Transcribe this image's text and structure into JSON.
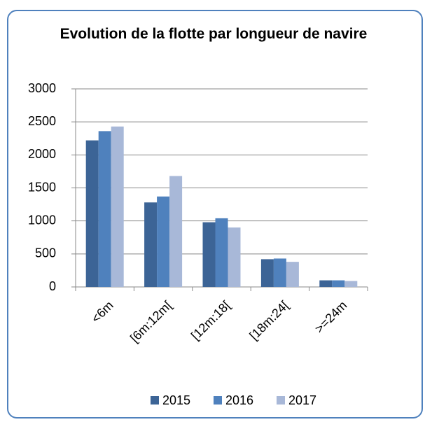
{
  "chart_data": {
    "type": "bar",
    "title": "Evolution de la flotte par longueur de navire",
    "categories": [
      "<6m",
      "[6m:12m[",
      "[12m:18[",
      "[18m:24[",
      ">=24m"
    ],
    "series": [
      {
        "name": "2015",
        "color": "#3c6496",
        "values": [
          2220,
          1280,
          980,
          420,
          100
        ]
      },
      {
        "name": "2016",
        "color": "#4f81bd",
        "values": [
          2360,
          1370,
          1040,
          430,
          100
        ]
      },
      {
        "name": "2017",
        "color": "#a8b8d8",
        "values": [
          2430,
          1680,
          900,
          380,
          90
        ]
      }
    ],
    "ylim": [
      0,
      3000
    ],
    "yticks": [
      0,
      500,
      1000,
      1500,
      2000,
      2500,
      3000
    ],
    "grid": true,
    "legend": "bottom"
  }
}
